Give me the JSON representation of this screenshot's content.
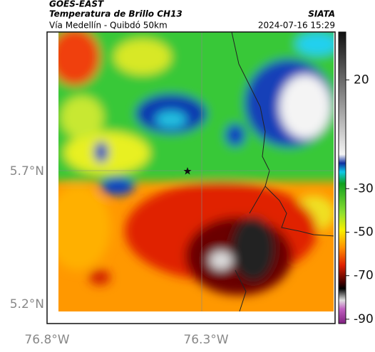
{
  "header": {
    "satellite": "GOES-EAST",
    "product": "Temperatura de Brillo CH13",
    "route": "Vía Medellín - Quibdó 50km",
    "source": "SIATA",
    "timestamp": "2024-07-16 15:29"
  },
  "axes": {
    "lat_labels": [
      "5.7°N",
      "5.2°N"
    ],
    "lon_labels": [
      "76.8°W",
      "76.3°W"
    ]
  },
  "colorbar": {
    "lim": [
      -92,
      42
    ],
    "ticks": [
      20,
      -30,
      -50,
      -70,
      -90
    ]
  }
}
